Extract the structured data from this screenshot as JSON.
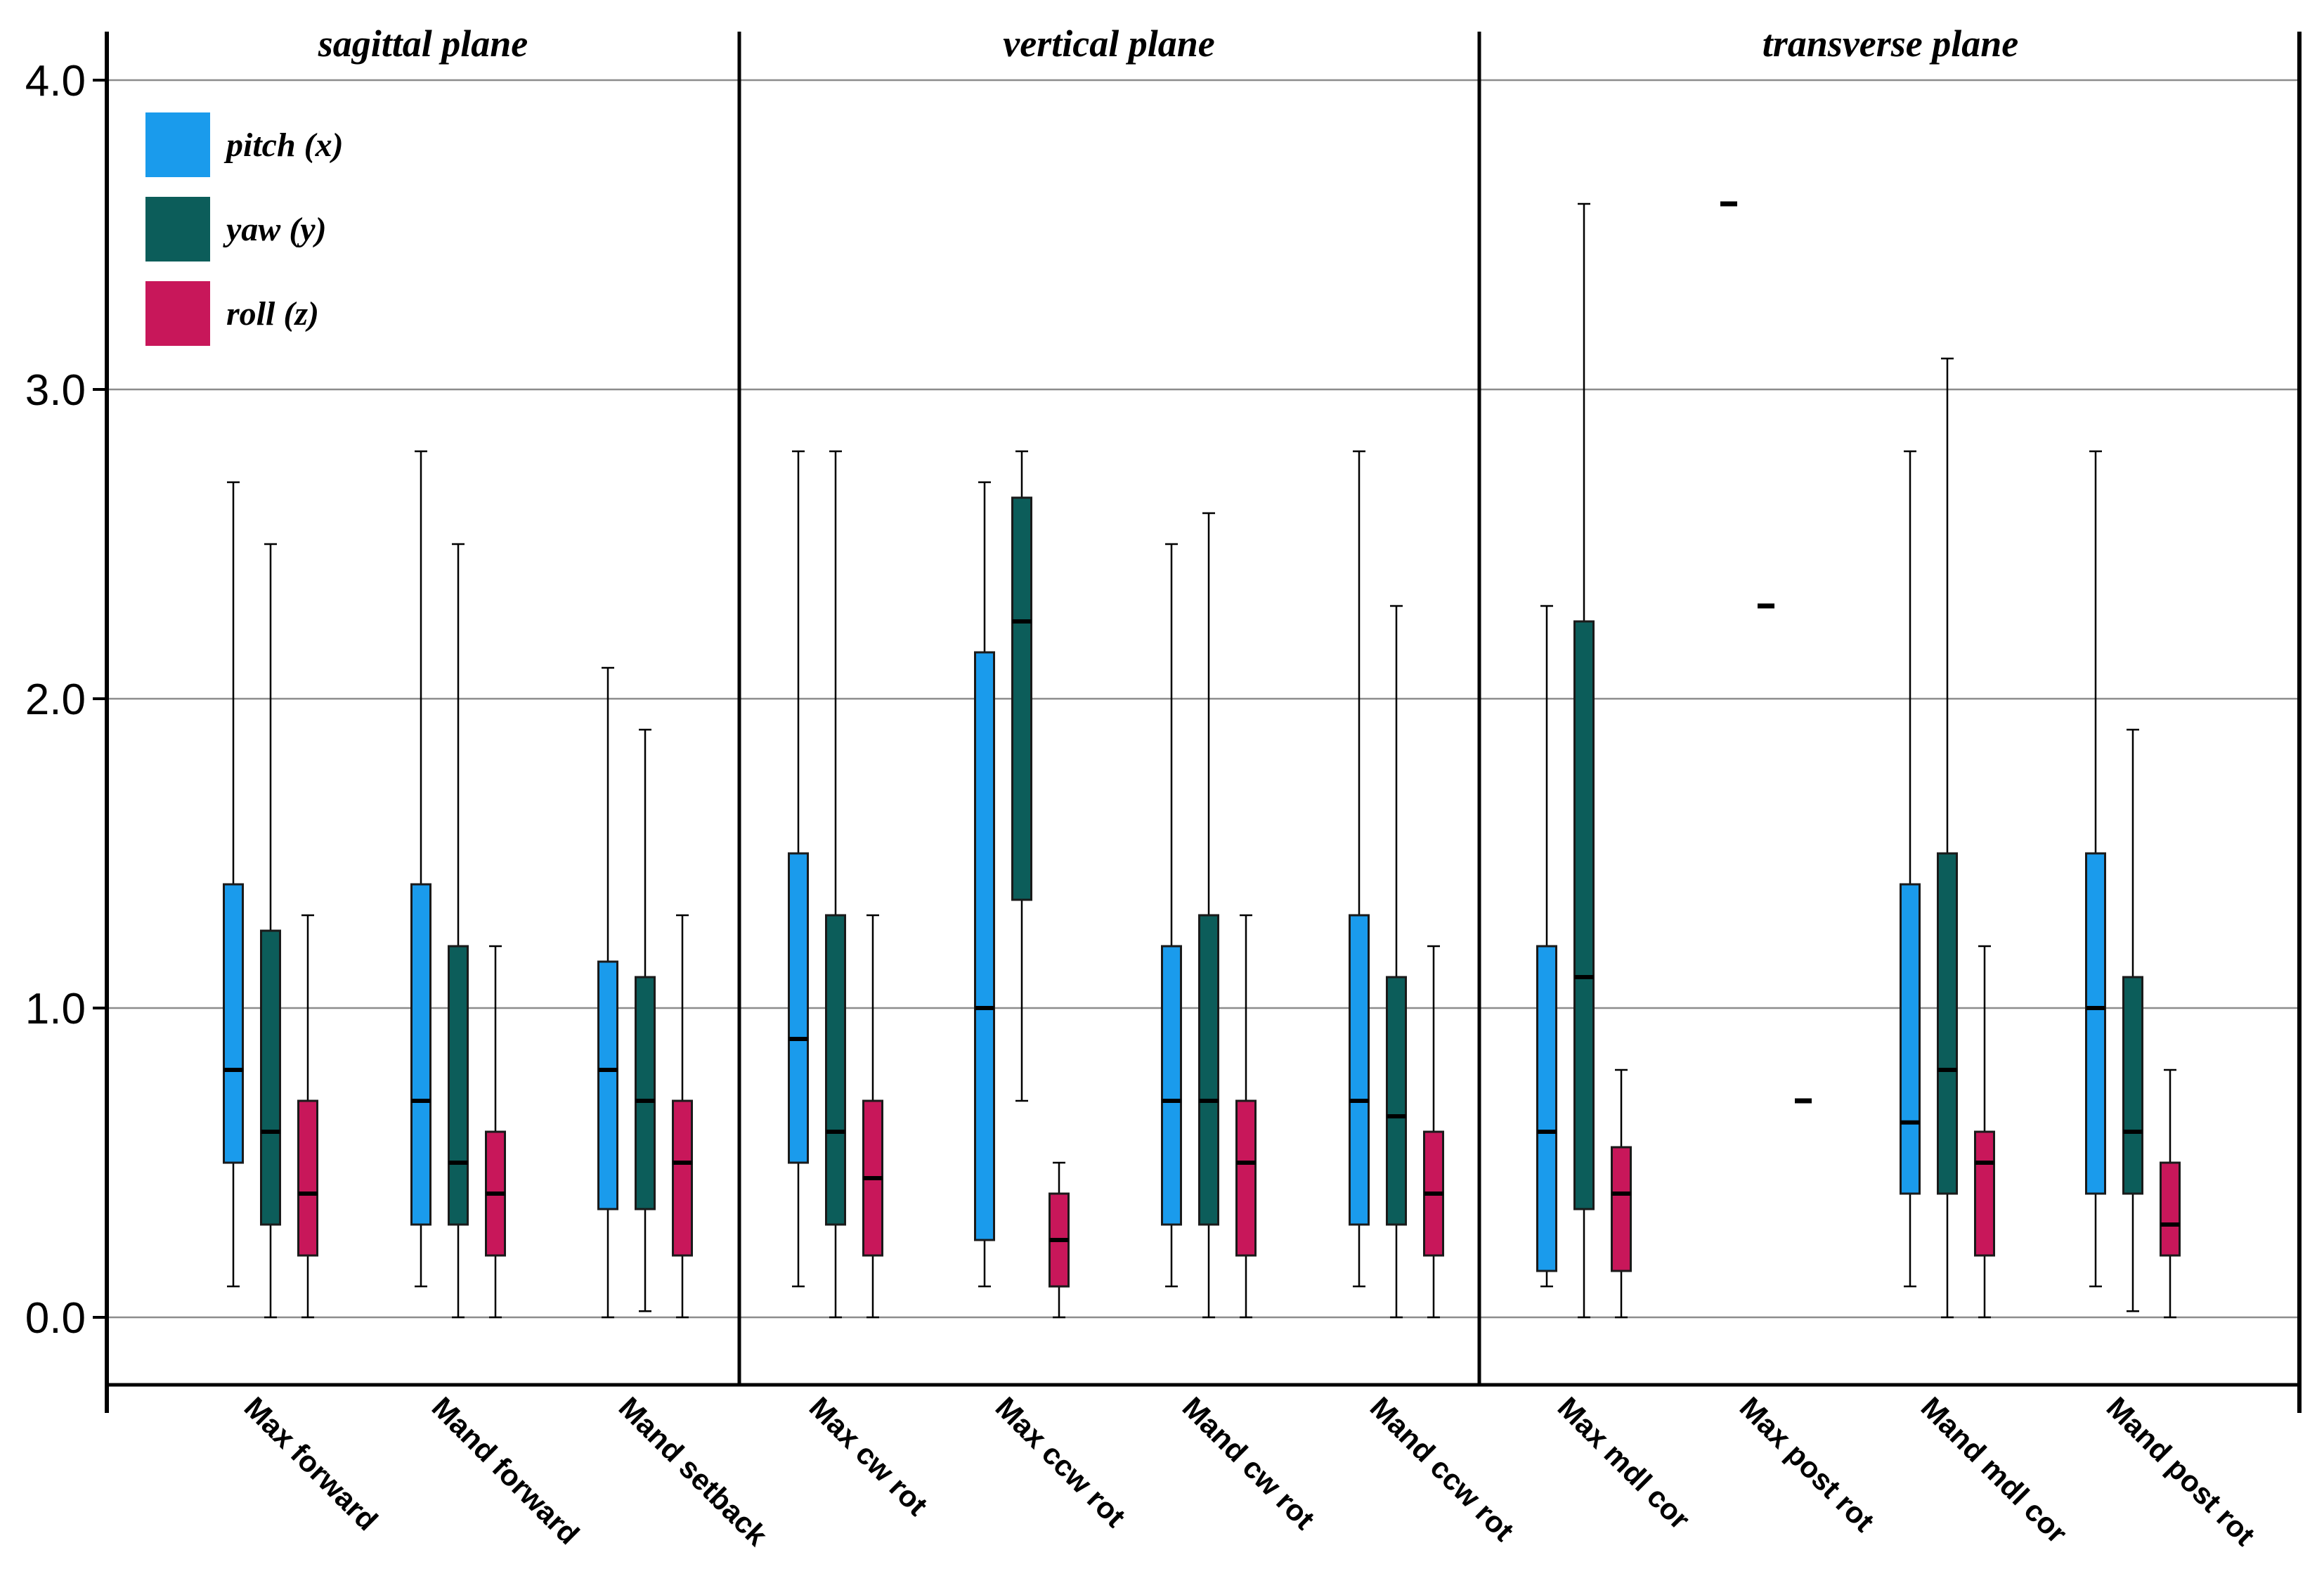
{
  "chart_data": {
    "type": "boxplot",
    "title": "",
    "xlabel": "",
    "ylabel": "",
    "ylim": [
      -0.22,
      4.1
    ],
    "yticks": [
      0.0,
      1.0,
      2.0,
      3.0,
      4.0
    ],
    "ytick_labels": [
      "0.0",
      "1.0",
      "2.0",
      "3.0",
      "4.0"
    ],
    "grid": true,
    "legend": "top-left",
    "panels": [
      {
        "title": "sagittal plane",
        "categories": [
          "Max forward",
          "Mand forward",
          "Mand setback"
        ]
      },
      {
        "title": "vertical plane",
        "categories": [
          "Max cw rot",
          "Max ccw rot",
          "Mand cw rot",
          "Mand ccw rot"
        ]
      },
      {
        "title": "transverse plane",
        "categories": [
          "Max mdl cor",
          "Max post rot",
          "Mand mdl cor",
          "Mand post rot"
        ]
      }
    ],
    "categories": [
      "Max forward",
      "Mand forward",
      "Mand setback",
      "Max cw rot",
      "Max ccw rot",
      "Mand cw rot",
      "Mand ccw rot",
      "Max mdl cor",
      "Max post rot",
      "Mand mdl cor",
      "Mand post rot"
    ],
    "series": [
      {
        "name": "pitch (x)",
        "color": "#1a9bec",
        "boxes": [
          {
            "min": 0.1,
            "q1": 0.5,
            "median": 0.8,
            "q3": 1.4,
            "max": 2.7
          },
          {
            "min": 0.1,
            "q1": 0.3,
            "median": 0.7,
            "q3": 1.4,
            "max": 2.8
          },
          {
            "min": 0.0,
            "q1": 0.35,
            "median": 0.8,
            "q3": 1.15,
            "max": 2.1
          },
          {
            "min": 0.1,
            "q1": 0.5,
            "median": 0.9,
            "q3": 1.5,
            "max": 2.8
          },
          {
            "min": 0.1,
            "q1": 0.25,
            "median": 1.0,
            "q3": 2.15,
            "max": 2.7
          },
          {
            "min": 0.1,
            "q1": 0.3,
            "median": 0.7,
            "q3": 1.2,
            "max": 2.5
          },
          {
            "min": 0.1,
            "q1": 0.3,
            "median": 0.7,
            "q3": 1.3,
            "max": 2.8
          },
          {
            "min": 0.1,
            "q1": 0.15,
            "median": 0.6,
            "q3": 1.2,
            "max": 2.3
          },
          {
            "median": 3.6
          },
          {
            "min": 0.1,
            "q1": 0.4,
            "median": 0.63,
            "q3": 1.4,
            "max": 2.8
          },
          {
            "min": 0.1,
            "q1": 0.4,
            "median": 1.0,
            "q3": 1.5,
            "max": 2.8
          }
        ]
      },
      {
        "name": "yaw (y)",
        "color": "#0c5d5a",
        "boxes": [
          {
            "min": 0.0,
            "q1": 0.3,
            "median": 0.6,
            "q3": 1.25,
            "max": 2.5
          },
          {
            "min": 0.0,
            "q1": 0.3,
            "median": 0.5,
            "q3": 1.2,
            "max": 2.5
          },
          {
            "min": 0.02,
            "q1": 0.35,
            "median": 0.7,
            "q3": 1.1,
            "max": 1.9
          },
          {
            "min": 0.0,
            "q1": 0.3,
            "median": 0.6,
            "q3": 1.3,
            "max": 2.8
          },
          {
            "min": 0.7,
            "q1": 1.35,
            "median": 2.25,
            "q3": 2.65,
            "max": 2.8
          },
          {
            "min": 0.0,
            "q1": 0.3,
            "median": 0.7,
            "q3": 1.3,
            "max": 2.6
          },
          {
            "min": 0.0,
            "q1": 0.3,
            "median": 0.65,
            "q3": 1.1,
            "max": 2.3
          },
          {
            "min": 0.0,
            "q1": 0.35,
            "median": 1.1,
            "q3": 2.25,
            "max": 3.6
          },
          {
            "median": 2.3
          },
          {
            "min": 0.0,
            "q1": 0.4,
            "median": 0.8,
            "q3": 1.5,
            "max": 3.1
          },
          {
            "min": 0.02,
            "q1": 0.4,
            "median": 0.6,
            "q3": 1.1,
            "max": 1.9
          }
        ]
      },
      {
        "name": "roll (z)",
        "color": "#c8175a",
        "boxes": [
          {
            "min": 0.0,
            "q1": 0.2,
            "median": 0.4,
            "q3": 0.7,
            "max": 1.3
          },
          {
            "min": 0.0,
            "q1": 0.2,
            "median": 0.4,
            "q3": 0.6,
            "max": 1.2
          },
          {
            "min": 0.0,
            "q1": 0.2,
            "median": 0.5,
            "q3": 0.7,
            "max": 1.3
          },
          {
            "min": 0.0,
            "q1": 0.2,
            "median": 0.45,
            "q3": 0.7,
            "max": 1.3
          },
          {
            "min": 0.0,
            "q1": 0.1,
            "median": 0.25,
            "q3": 0.4,
            "max": 0.5
          },
          {
            "min": 0.0,
            "q1": 0.2,
            "median": 0.5,
            "q3": 0.7,
            "max": 1.3
          },
          {
            "min": 0.0,
            "q1": 0.2,
            "median": 0.4,
            "q3": 0.6,
            "max": 1.2
          },
          {
            "min": 0.0,
            "q1": 0.15,
            "median": 0.4,
            "q3": 0.55,
            "max": 0.8
          },
          {
            "median": 0.7
          },
          {
            "min": 0.0,
            "q1": 0.2,
            "median": 0.5,
            "q3": 0.6,
            "max": 1.2
          },
          {
            "min": 0.0,
            "q1": 0.2,
            "median": 0.3,
            "q3": 0.5,
            "max": 0.8
          }
        ]
      }
    ]
  }
}
